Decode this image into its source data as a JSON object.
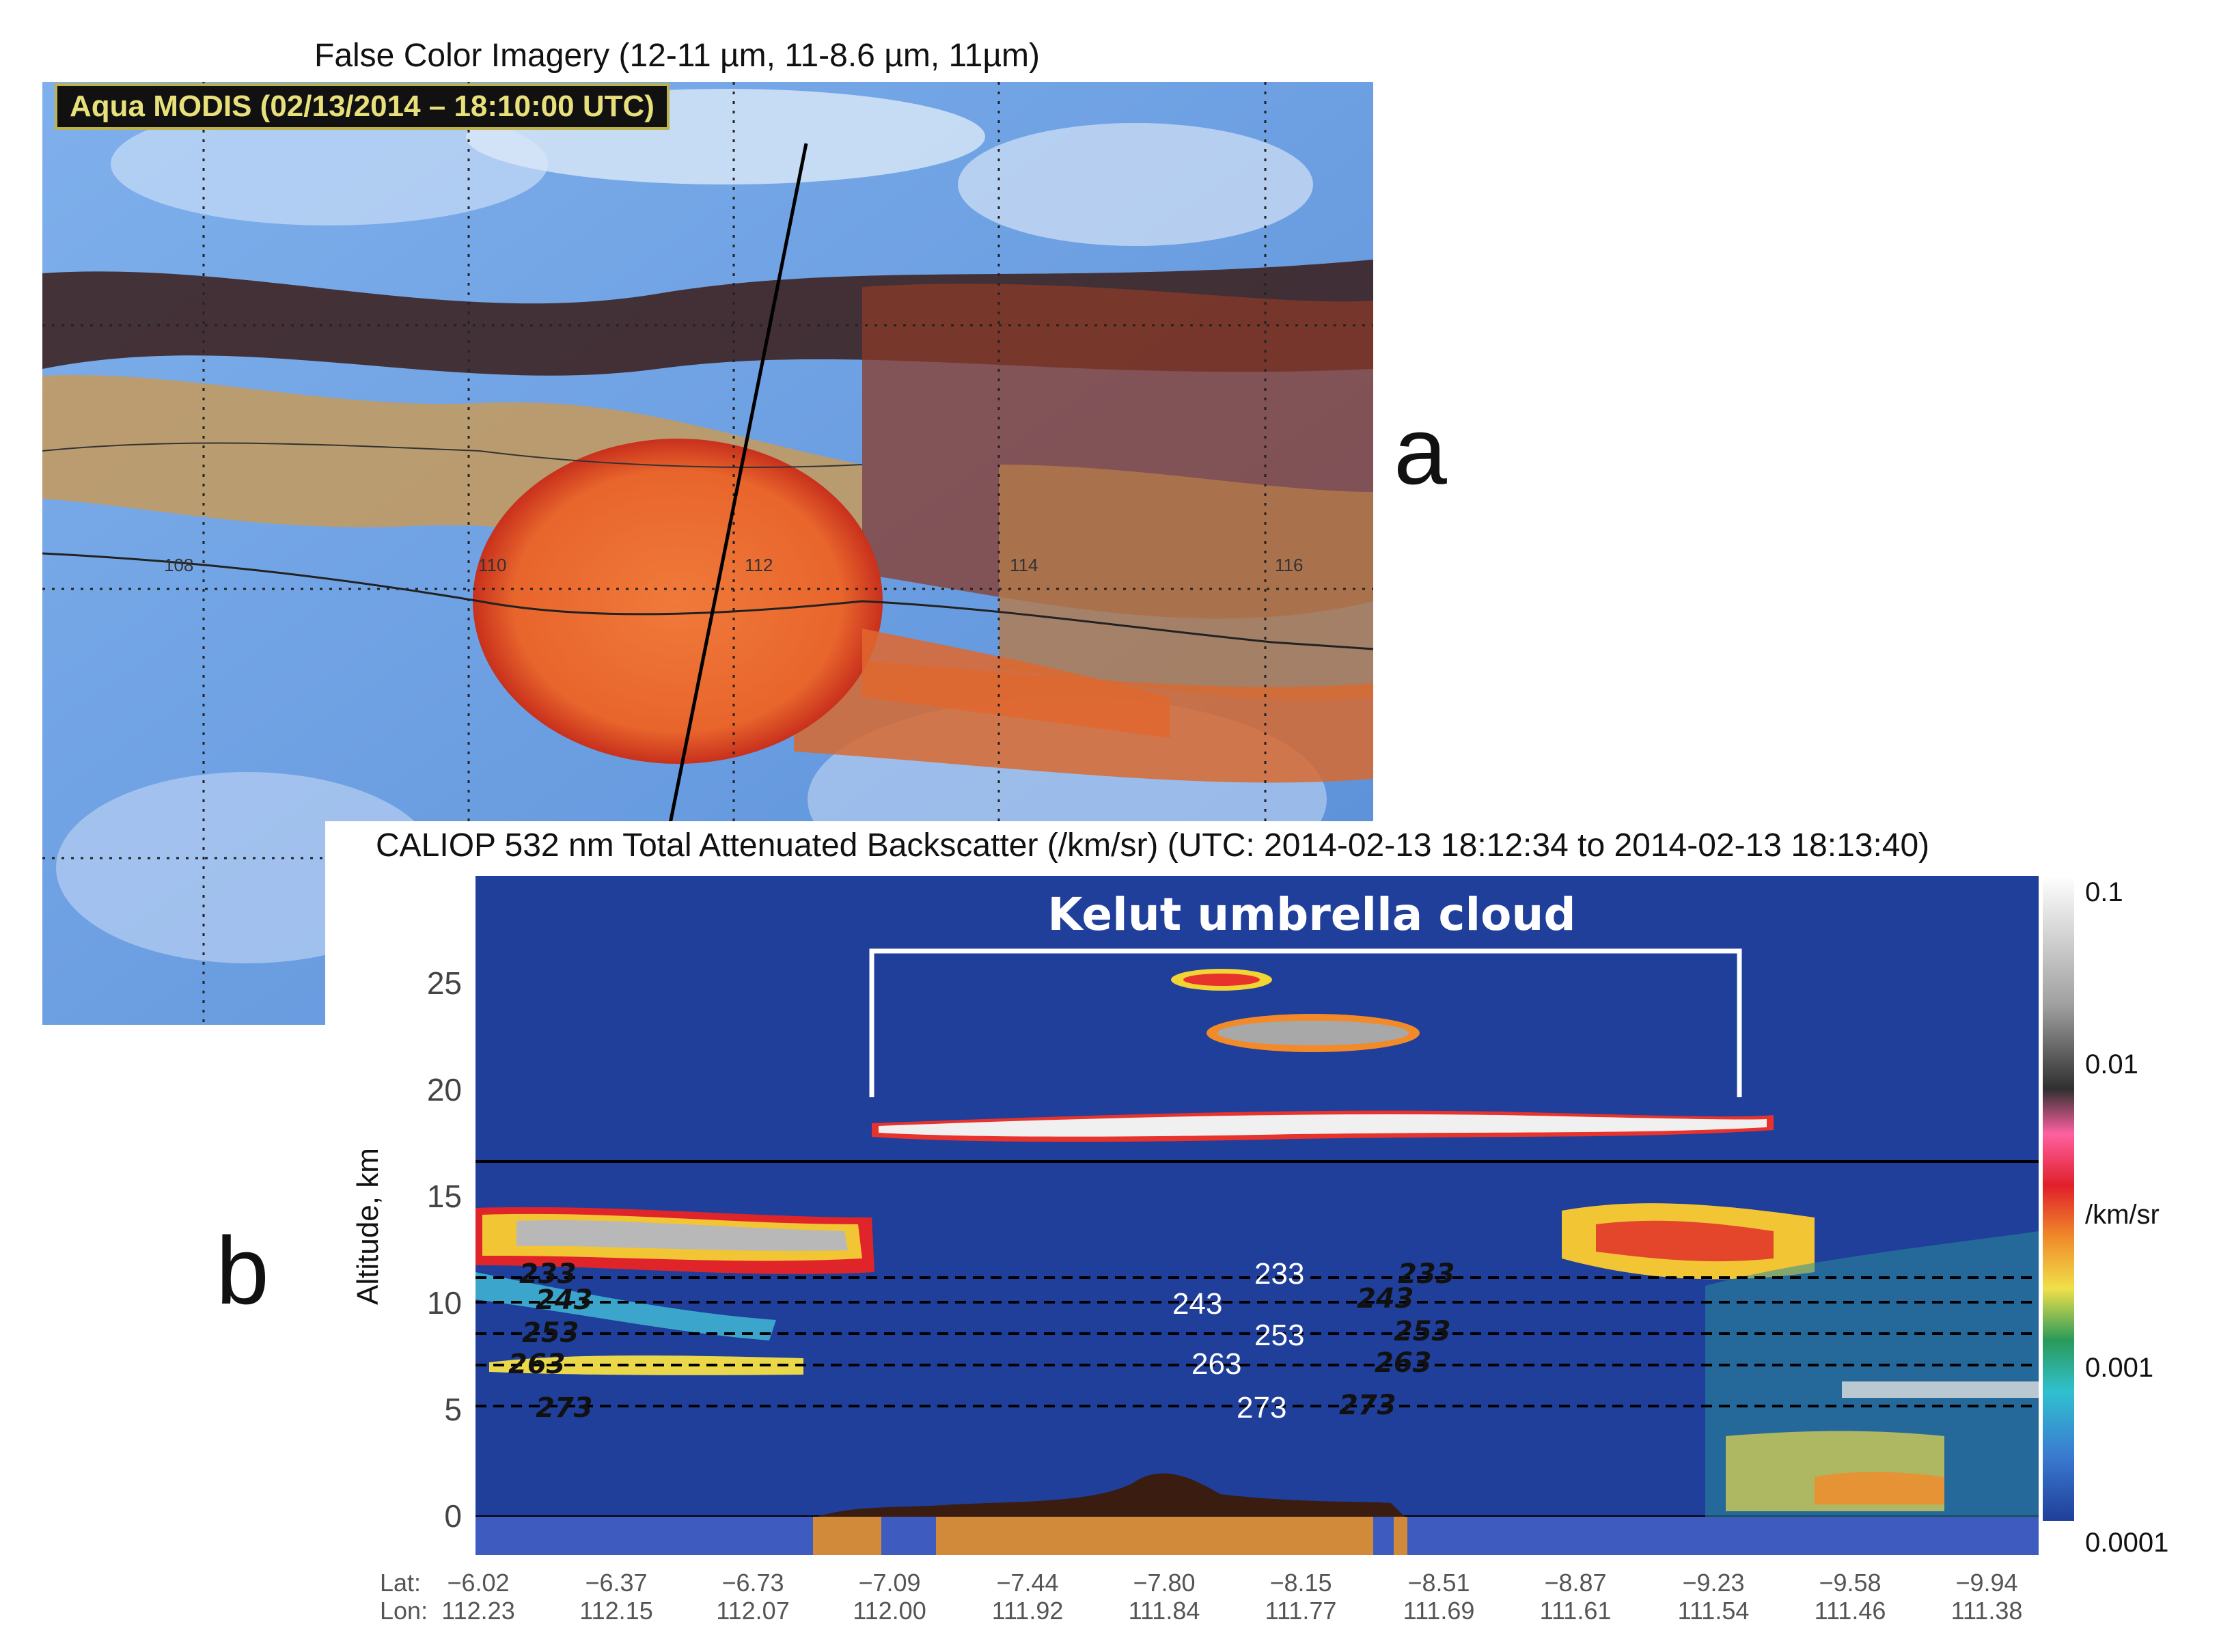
{
  "panel_a": {
    "title": "False Color Imagery (12-11 µm, 11-8.6 µm, 11µm)",
    "badge": "Aqua MODIS (02/13/2014 – 18:10:00 UTC)",
    "letter": "a",
    "lon_labels": [
      "108",
      "110",
      "112",
      "114",
      "116"
    ],
    "colors": {
      "ocean": "#6f9fe0",
      "ash": "#e46a30",
      "land": "#b9915a",
      "dark": "#2a1410"
    }
  },
  "panel_b": {
    "title": "CALIOP 532 nm Total Attenuated Backscatter (/km/sr) (UTC: 2014-02-13 18:12:34 to 2014-02-13 18:13:40)",
    "letter": "b",
    "annotation": "Kelut umbrella cloud",
    "y_axis_title": "Altitude, km",
    "y_ticks": [
      "25",
      "20",
      "15",
      "10",
      "5",
      "0"
    ],
    "colorbar": {
      "labels": [
        "0.1",
        "0.01",
        "/km/sr",
        "0.001",
        "0.0001"
      ]
    },
    "x_header": {
      "lat": "Lat:",
      "lon": "Lon:"
    },
    "x_ticks": [
      {
        "lat": "−6.02",
        "lon": "112.23"
      },
      {
        "lat": "−6.37",
        "lon": "112.15"
      },
      {
        "lat": "−6.73",
        "lon": "112.07"
      },
      {
        "lat": "−7.09",
        "lon": "112.00"
      },
      {
        "lat": "−7.44",
        "lon": "111.92"
      },
      {
        "lat": "−7.80",
        "lon": "111.84"
      },
      {
        "lat": "−8.15",
        "lon": "111.77"
      },
      {
        "lat": "−8.51",
        "lon": "111.69"
      },
      {
        "lat": "−8.87",
        "lon": "111.61"
      },
      {
        "lat": "−9.23",
        "lon": "111.54"
      },
      {
        "lat": "−9.58",
        "lon": "111.46"
      },
      {
        "lat": "−9.94",
        "lon": "111.38"
      }
    ],
    "isotherms_left": [
      "233",
      "243",
      "253",
      "263",
      "273"
    ],
    "isotherms_center": [
      "233",
      "243",
      "253",
      "263",
      "273"
    ],
    "isotherms_right": [
      "233",
      "243",
      "253",
      "263",
      "273"
    ],
    "colors": {
      "background": "#1f3f9a",
      "surface": "#d08a3a"
    }
  }
}
